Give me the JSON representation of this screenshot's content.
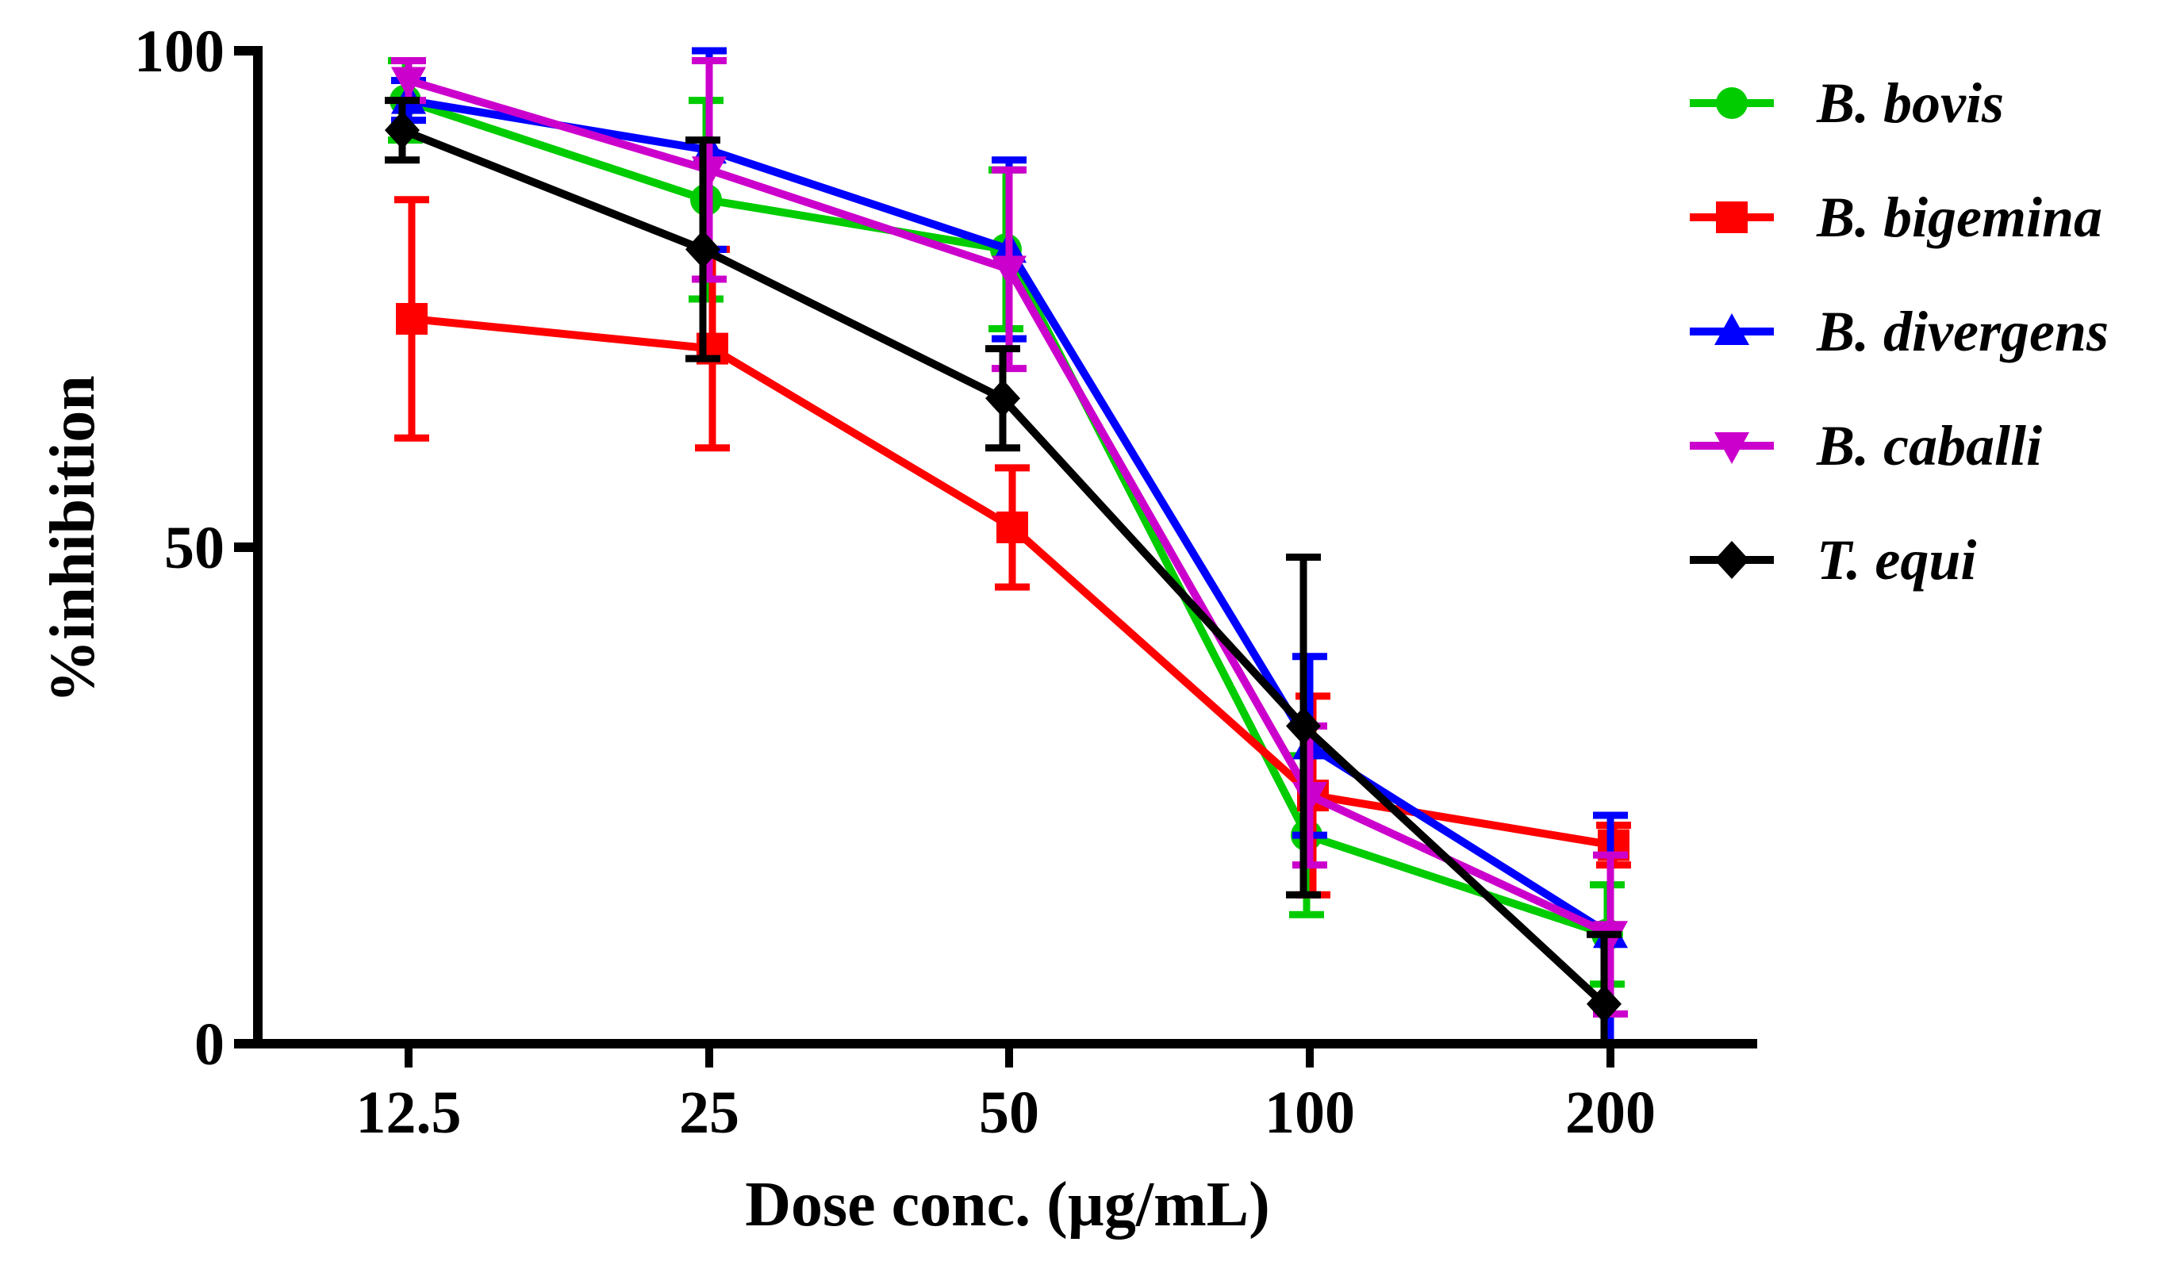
{
  "chart_data": {
    "type": "line",
    "title": "",
    "xlabel": "Dose conc. (µg/mL)",
    "ylabel": "%inhibition",
    "x_scale": "categorical",
    "categories": [
      "12.5",
      "25",
      "50",
      "100",
      "200"
    ],
    "ylim": [
      0,
      100
    ],
    "yticks": [
      "0",
      "50",
      "100"
    ],
    "grid": false,
    "legend_position": "right",
    "error_bars": true,
    "series": [
      {
        "name": "B. bovis",
        "color": "#00CC00",
        "marker": "circle",
        "values": [
          95,
          85,
          80,
          21,
          11
        ],
        "errors": [
          4,
          10,
          8,
          8,
          5
        ]
      },
      {
        "name": "B. bigemina",
        "color": "#FF0000",
        "marker": "square",
        "values": [
          73,
          70,
          52,
          25,
          20
        ],
        "errors": [
          12,
          10,
          6,
          10,
          2
        ]
      },
      {
        "name": "B. divergens",
        "color": "#0000FF",
        "marker": "triangle-up",
        "values": [
          95,
          90,
          80,
          30,
          11
        ],
        "errors": [
          2,
          10,
          9,
          9,
          12
        ]
      },
      {
        "name": "B. caballi",
        "color": "#CC00CC",
        "marker": "triangle-down",
        "values": [
          97,
          88,
          78,
          25,
          11
        ],
        "errors": [
          2,
          11,
          10,
          7,
          8
        ]
      },
      {
        "name": "T. equi",
        "color": "#000000",
        "marker": "diamond",
        "values": [
          92,
          80,
          65,
          32,
          4
        ],
        "errors": [
          3,
          11,
          5,
          17,
          7
        ]
      }
    ]
  }
}
